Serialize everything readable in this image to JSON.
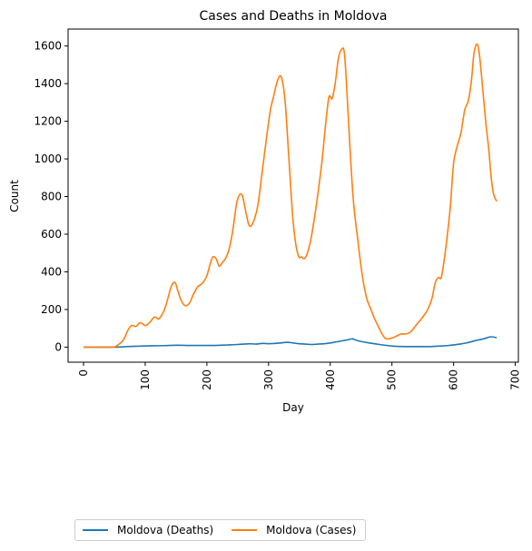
{
  "chart_data": {
    "type": "line",
    "title": "Cases and Deaths in Moldova",
    "xlabel": "Day",
    "ylabel": "Count",
    "xlim": [
      -25,
      705
    ],
    "ylim": [
      -80,
      1690
    ],
    "xticks": [
      0,
      100,
      200,
      300,
      400,
      500,
      600,
      700
    ],
    "yticks": [
      0,
      200,
      400,
      600,
      800,
      1000,
      1200,
      1400,
      1600
    ],
    "grid": false,
    "legend_placement": "below-left",
    "series": [
      {
        "name": "Moldova (Deaths)",
        "color": "#1f77b4",
        "x": [
          0,
          50,
          70,
          90,
          110,
          130,
          150,
          170,
          190,
          210,
          230,
          250,
          260,
          270,
          280,
          290,
          300,
          310,
          320,
          330,
          340,
          350,
          360,
          370,
          380,
          390,
          400,
          410,
          420,
          430,
          436,
          445,
          460,
          480,
          500,
          520,
          540,
          560,
          580,
          590,
          600,
          610,
          620,
          630,
          640,
          650,
          660,
          670
        ],
        "values": [
          0,
          0,
          3,
          5,
          7,
          8,
          10,
          9,
          9,
          9,
          11,
          14,
          16,
          18,
          16,
          20,
          18,
          20,
          22,
          26,
          22,
          18,
          16,
          14,
          16,
          18,
          22,
          28,
          34,
          40,
          44,
          34,
          24,
          14,
          6,
          3,
          3,
          3,
          6,
          8,
          12,
          16,
          22,
          30,
          38,
          45,
          55,
          50
        ]
      },
      {
        "name": "Moldova (Cases)",
        "color": "#ff7f0e",
        "x": [
          0,
          45,
          55,
          65,
          72,
          78,
          85,
          92,
          100,
          107,
          115,
          122,
          130,
          136,
          142,
          148,
          152,
          158,
          165,
          172,
          178,
          185,
          193,
          200,
          206,
          210,
          215,
          220,
          225,
          230,
          236,
          242,
          248,
          253,
          258,
          263,
          268,
          272,
          277,
          283,
          290,
          297,
          303,
          308,
          313,
          318,
          322,
          327,
          333,
          339,
          344,
          349,
          353,
          358,
          363,
          369,
          375,
          381,
          387,
          393,
          398,
          403,
          408,
          413,
          418,
          423,
          428,
          433,
          438,
          445,
          452,
          459,
          466,
          472,
          478,
          484,
          490,
          496,
          502,
          508,
          515,
          522,
          530,
          540,
          550,
          558,
          565,
          570,
          575,
          580,
          585,
          590,
          595,
          600,
          606,
          612,
          618,
          624,
          629,
          633,
          638,
          642,
          647,
          652,
          657,
          661,
          665,
          670
        ],
        "values": [
          0,
          0,
          10,
          40,
          90,
          115,
          110,
          130,
          115,
          130,
          160,
          150,
          190,
          250,
          320,
          345,
          310,
          250,
          220,
          235,
          280,
          320,
          340,
          380,
          450,
          480,
          470,
          430,
          450,
          470,
          520,
          620,
          760,
          810,
          800,
          720,
          650,
          645,
          680,
          760,
          940,
          1120,
          1260,
          1330,
          1400,
          1440,
          1420,
          1300,
          1000,
          700,
          550,
          480,
          480,
          470,
          500,
          580,
          700,
          840,
          1000,
          1200,
          1330,
          1320,
          1400,
          1530,
          1580,
          1560,
          1300,
          1000,
          760,
          560,
          380,
          260,
          200,
          150,
          110,
          70,
          45,
          45,
          50,
          60,
          70,
          70,
          80,
          120,
          160,
          200,
          260,
          340,
          370,
          370,
          470,
          600,
          760,
          980,
          1070,
          1140,
          1260,
          1310,
          1420,
          1560,
          1610,
          1550,
          1380,
          1200,
          1050,
          900,
          810,
          775
        ]
      }
    ]
  }
}
